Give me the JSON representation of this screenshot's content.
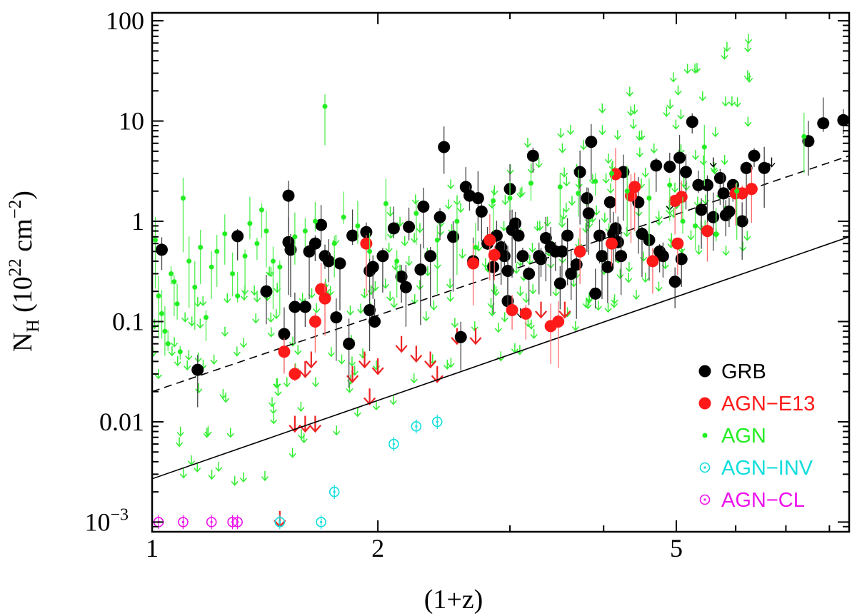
{
  "chart_data": {
    "type": "scatter",
    "title": "",
    "xlabel": "(1+z)",
    "ylabel": {
      "main": "N",
      "sub": "H",
      "unit": " (10",
      "exp": "22",
      "unit2": " cm",
      "exp2": "−2",
      "close": ")"
    },
    "xscale": "log",
    "yscale": "log",
    "xlim": [
      1,
      8.5
    ],
    "ylim": [
      0.0008,
      120
    ],
    "x_ticks": [
      {
        "value": 1,
        "label": "1"
      },
      {
        "value": 2,
        "label": "2"
      },
      {
        "value": 5,
        "label": "5"
      }
    ],
    "y_ticks": [
      {
        "value": 100,
        "label": "100",
        "kind": "plain"
      },
      {
        "value": 10,
        "label": "10",
        "kind": "plain"
      },
      {
        "value": 1,
        "label": "1",
        "kind": "plain"
      },
      {
        "value": 0.1,
        "label": "0.1",
        "kind": "plain"
      },
      {
        "value": 0.01,
        "label": "0.01",
        "kind": "plain"
      },
      {
        "value": 0.001,
        "label": "10",
        "exp": "−3",
        "kind": "power"
      }
    ],
    "legend_position": "bottom-right",
    "legend": [
      {
        "label": "GRB",
        "color": "#000000",
        "marker": "big-dot"
      },
      {
        "label": "AGN−E13",
        "color": "#ff1a1a",
        "marker": "big-dot"
      },
      {
        "label": "AGN",
        "color": "#22ee22",
        "marker": "small-dot"
      },
      {
        "label": "AGN−INV",
        "color": "#11dddd",
        "marker": "circle-dot"
      },
      {
        "label": "AGN−CL",
        "color": "#ee11ee",
        "marker": "circle-dot"
      }
    ],
    "lines": [
      {
        "name": "solid-trend",
        "style": "solid",
        "color": "#000000",
        "points": [
          [
            1,
            0.0027
          ],
          [
            8.5,
            0.7
          ]
        ]
      },
      {
        "name": "dashed-trend",
        "style": "dashed",
        "color": "#000000",
        "points": [
          [
            1,
            0.02
          ],
          [
            8.5,
            4.5
          ]
        ]
      }
    ],
    "series": [
      {
        "name": "GRB",
        "color": "#000000",
        "marker": "big-dot",
        "points": [
          [
            1.03,
            0.52
          ],
          [
            1.3,
            0.71
          ],
          [
            1.15,
            0.033
          ],
          [
            1.42,
            0.2
          ],
          [
            1.52,
            1.8
          ],
          [
            1.52,
            0.62
          ],
          [
            1.53,
            0.52
          ],
          [
            1.5,
            0.075
          ],
          [
            1.55,
            0.14
          ],
          [
            1.6,
            0.14
          ],
          [
            1.62,
            0.5
          ],
          [
            1.65,
            0.6
          ],
          [
            1.68,
            0.92
          ],
          [
            1.7,
            0.45
          ],
          [
            1.72,
            0.4
          ],
          [
            1.76,
            0.11
          ],
          [
            1.78,
            0.38
          ],
          [
            1.83,
            0.06
          ],
          [
            1.85,
            0.72
          ],
          [
            1.93,
            0.78
          ],
          [
            1.95,
            0.32
          ],
          [
            1.97,
            0.35
          ],
          [
            1.95,
            0.13
          ],
          [
            1.98,
            0.1
          ],
          [
            2.03,
            0.45
          ],
          [
            2.1,
            0.85
          ],
          [
            2.15,
            0.28
          ],
          [
            2.18,
            0.22
          ],
          [
            2.2,
            0.88
          ],
          [
            2.28,
            0.33
          ],
          [
            2.3,
            1.4
          ],
          [
            2.35,
            0.45
          ],
          [
            2.42,
            1.1
          ],
          [
            2.45,
            5.5
          ],
          [
            2.52,
            0.7
          ],
          [
            2.58,
            0.07
          ],
          [
            2.62,
            2.2
          ],
          [
            2.65,
            1.8
          ],
          [
            2.68,
            0.4
          ],
          [
            2.72,
            1.7
          ],
          [
            2.75,
            1.25
          ],
          [
            2.8,
            0.6
          ],
          [
            2.85,
            0.35
          ],
          [
            2.88,
            0.72
          ],
          [
            2.92,
            0.55
          ],
          [
            2.95,
            0.45
          ],
          [
            2.98,
            0.16
          ],
          [
            2.98,
            0.32
          ],
          [
            3.0,
            2.1
          ],
          [
            3.02,
            0.82
          ],
          [
            3.05,
            0.95
          ],
          [
            3.08,
            0.72
          ],
          [
            3.12,
            0.45
          ],
          [
            3.18,
            0.3
          ],
          [
            3.22,
            4.5
          ],
          [
            3.28,
            0.45
          ],
          [
            3.3,
            0.42
          ],
          [
            3.35,
            0.68
          ],
          [
            3.4,
            0.55
          ],
          [
            3.45,
            0.5
          ],
          [
            3.5,
            0.24
          ],
          [
            3.52,
            0.5
          ],
          [
            3.58,
            0.72
          ],
          [
            3.62,
            0.3
          ],
          [
            3.68,
            0.37
          ],
          [
            3.72,
            3.1
          ],
          [
            3.8,
            1.7
          ],
          [
            3.82,
            1.2
          ],
          [
            3.85,
            6.2
          ],
          [
            3.9,
            0.19
          ],
          [
            3.95,
            0.72
          ],
          [
            3.98,
            0.45
          ],
          [
            4.05,
            0.35
          ],
          [
            4.08,
            1.55
          ],
          [
            4.12,
            0.75
          ],
          [
            4.15,
            0.85
          ],
          [
            4.18,
            0.62
          ],
          [
            4.22,
            0.45
          ],
          [
            4.25,
            3.1
          ],
          [
            4.45,
            1.55
          ],
          [
            4.5,
            0.75
          ],
          [
            4.6,
            0.65
          ],
          [
            4.7,
            3.6
          ],
          [
            4.75,
            0.5
          ],
          [
            4.8,
            0.45
          ],
          [
            4.9,
            3.5
          ],
          [
            4.98,
            0.25
          ],
          [
            5.05,
            4.3
          ],
          [
            5.08,
            0.42
          ],
          [
            5.15,
            3.1
          ],
          [
            5.25,
            9.8
          ],
          [
            5.35,
            2.3
          ],
          [
            5.4,
            1.3
          ],
          [
            5.5,
            2.3
          ],
          [
            5.6,
            1.1
          ],
          [
            5.72,
            2.7
          ],
          [
            5.78,
            1.9
          ],
          [
            5.82,
            1.15
          ],
          [
            5.88,
            1.25
          ],
          [
            5.95,
            2.3
          ],
          [
            6.12,
            1.0
          ],
          [
            6.2,
            3.4
          ],
          [
            6.35,
            4.5
          ],
          [
            6.55,
            3.4
          ],
          [
            7.5,
            6.3
          ],
          [
            7.85,
            9.5
          ],
          [
            8.35,
            10.2
          ]
        ]
      },
      {
        "name": "AGN−E13",
        "color": "#ff1a1a",
        "marker": "big-dot",
        "points": [
          [
            1.5,
            0.05
          ],
          [
            1.55,
            0.03
          ],
          [
            1.65,
            0.1
          ],
          [
            1.68,
            0.21
          ],
          [
            1.7,
            0.17
          ],
          [
            1.93,
            0.6
          ],
          [
            2.68,
            0.38
          ],
          [
            2.82,
            0.65
          ],
          [
            2.86,
            0.46
          ],
          [
            3.02,
            0.13
          ],
          [
            3.15,
            0.12
          ],
          [
            3.4,
            0.09
          ],
          [
            3.48,
            0.1
          ],
          [
            3.72,
            0.5
          ],
          [
            4.1,
            0.6
          ],
          [
            4.15,
            2.95
          ],
          [
            4.35,
            1.8
          ],
          [
            4.4,
            2.2
          ],
          [
            4.65,
            0.4
          ],
          [
            4.98,
            1.6
          ],
          [
            5.02,
            0.6
          ],
          [
            5.08,
            1.75
          ],
          [
            5.5,
            0.8
          ],
          [
            6.0,
            1.9
          ],
          [
            6.12,
            1.9
          ],
          [
            6.3,
            2.1
          ]
        ]
      },
      {
        "name": "AGN",
        "color": "#22ee22",
        "marker": "small-dot",
        "points": [
          [
            1.01,
            0.65
          ],
          [
            1.02,
            0.18
          ],
          [
            1.03,
            0.12
          ],
          [
            1.04,
            0.08
          ],
          [
            1.05,
            0.06
          ],
          [
            1.06,
            0.3
          ],
          [
            1.07,
            0.25
          ],
          [
            1.08,
            0.15
          ],
          [
            1.09,
            0.05
          ],
          [
            1.1,
            1.7
          ],
          [
            1.12,
            0.4
          ],
          [
            1.14,
            0.22
          ],
          [
            1.16,
            0.55
          ],
          [
            1.18,
            0.11
          ],
          [
            1.2,
            0.35
          ],
          [
            1.22,
            0.5
          ],
          [
            1.25,
            0.75
          ],
          [
            1.28,
            0.3
          ],
          [
            1.3,
            0.18
          ],
          [
            1.33,
            0.45
          ],
          [
            1.35,
            0.95
          ],
          [
            1.38,
            0.6
          ],
          [
            1.4,
            1.3
          ],
          [
            1.42,
            0.8
          ],
          [
            1.45,
            0.4
          ],
          [
            1.48,
            0.35
          ],
          [
            1.55,
            0.7
          ],
          [
            1.6,
            0.8
          ],
          [
            1.65,
            1.0
          ],
          [
            1.7,
            14.0
          ],
          [
            1.75,
            0.6
          ],
          [
            1.8,
            1.1
          ],
          [
            1.88,
            0.9
          ],
          [
            1.95,
            0.5
          ],
          [
            2.05,
            1.5
          ],
          [
            2.12,
            0.4
          ],
          [
            2.25,
            1.2
          ],
          [
            2.4,
            0.65
          ],
          [
            2.55,
            1.0
          ],
          [
            2.7,
            0.55
          ],
          [
            2.85,
            1.6
          ],
          [
            3.0,
            1.7
          ],
          [
            3.2,
            2.4
          ],
          [
            3.5,
            2.2
          ],
          [
            3.7,
            1.9
          ],
          [
            3.9,
            2.5
          ],
          [
            4.1,
            3.0
          ],
          [
            4.3,
            2.0
          ],
          [
            4.6,
            1.7
          ],
          [
            4.9,
            2.3
          ],
          [
            5.1,
            1.0
          ],
          [
            5.3,
            0.9
          ],
          [
            5.45,
            5.5
          ],
          [
            5.65,
            0.75
          ],
          [
            6.02,
            2.0
          ],
          [
            7.4,
            7.0
          ]
        ]
      },
      {
        "name": "AGN−INV",
        "color": "#11dddd",
        "marker": "circle-dot",
        "points": [
          [
            1.48,
            0.001
          ],
          [
            1.68,
            0.001
          ],
          [
            1.75,
            0.002
          ],
          [
            2.1,
            0.006
          ],
          [
            2.25,
            0.009
          ],
          [
            2.4,
            0.01
          ]
        ]
      },
      {
        "name": "AGN−CL",
        "color": "#ee11ee",
        "marker": "circle-dot",
        "points": [
          [
            1.02,
            0.001
          ],
          [
            1.1,
            0.001
          ],
          [
            1.2,
            0.001
          ],
          [
            1.28,
            0.001
          ],
          [
            1.3,
            0.001
          ]
        ]
      }
    ]
  }
}
